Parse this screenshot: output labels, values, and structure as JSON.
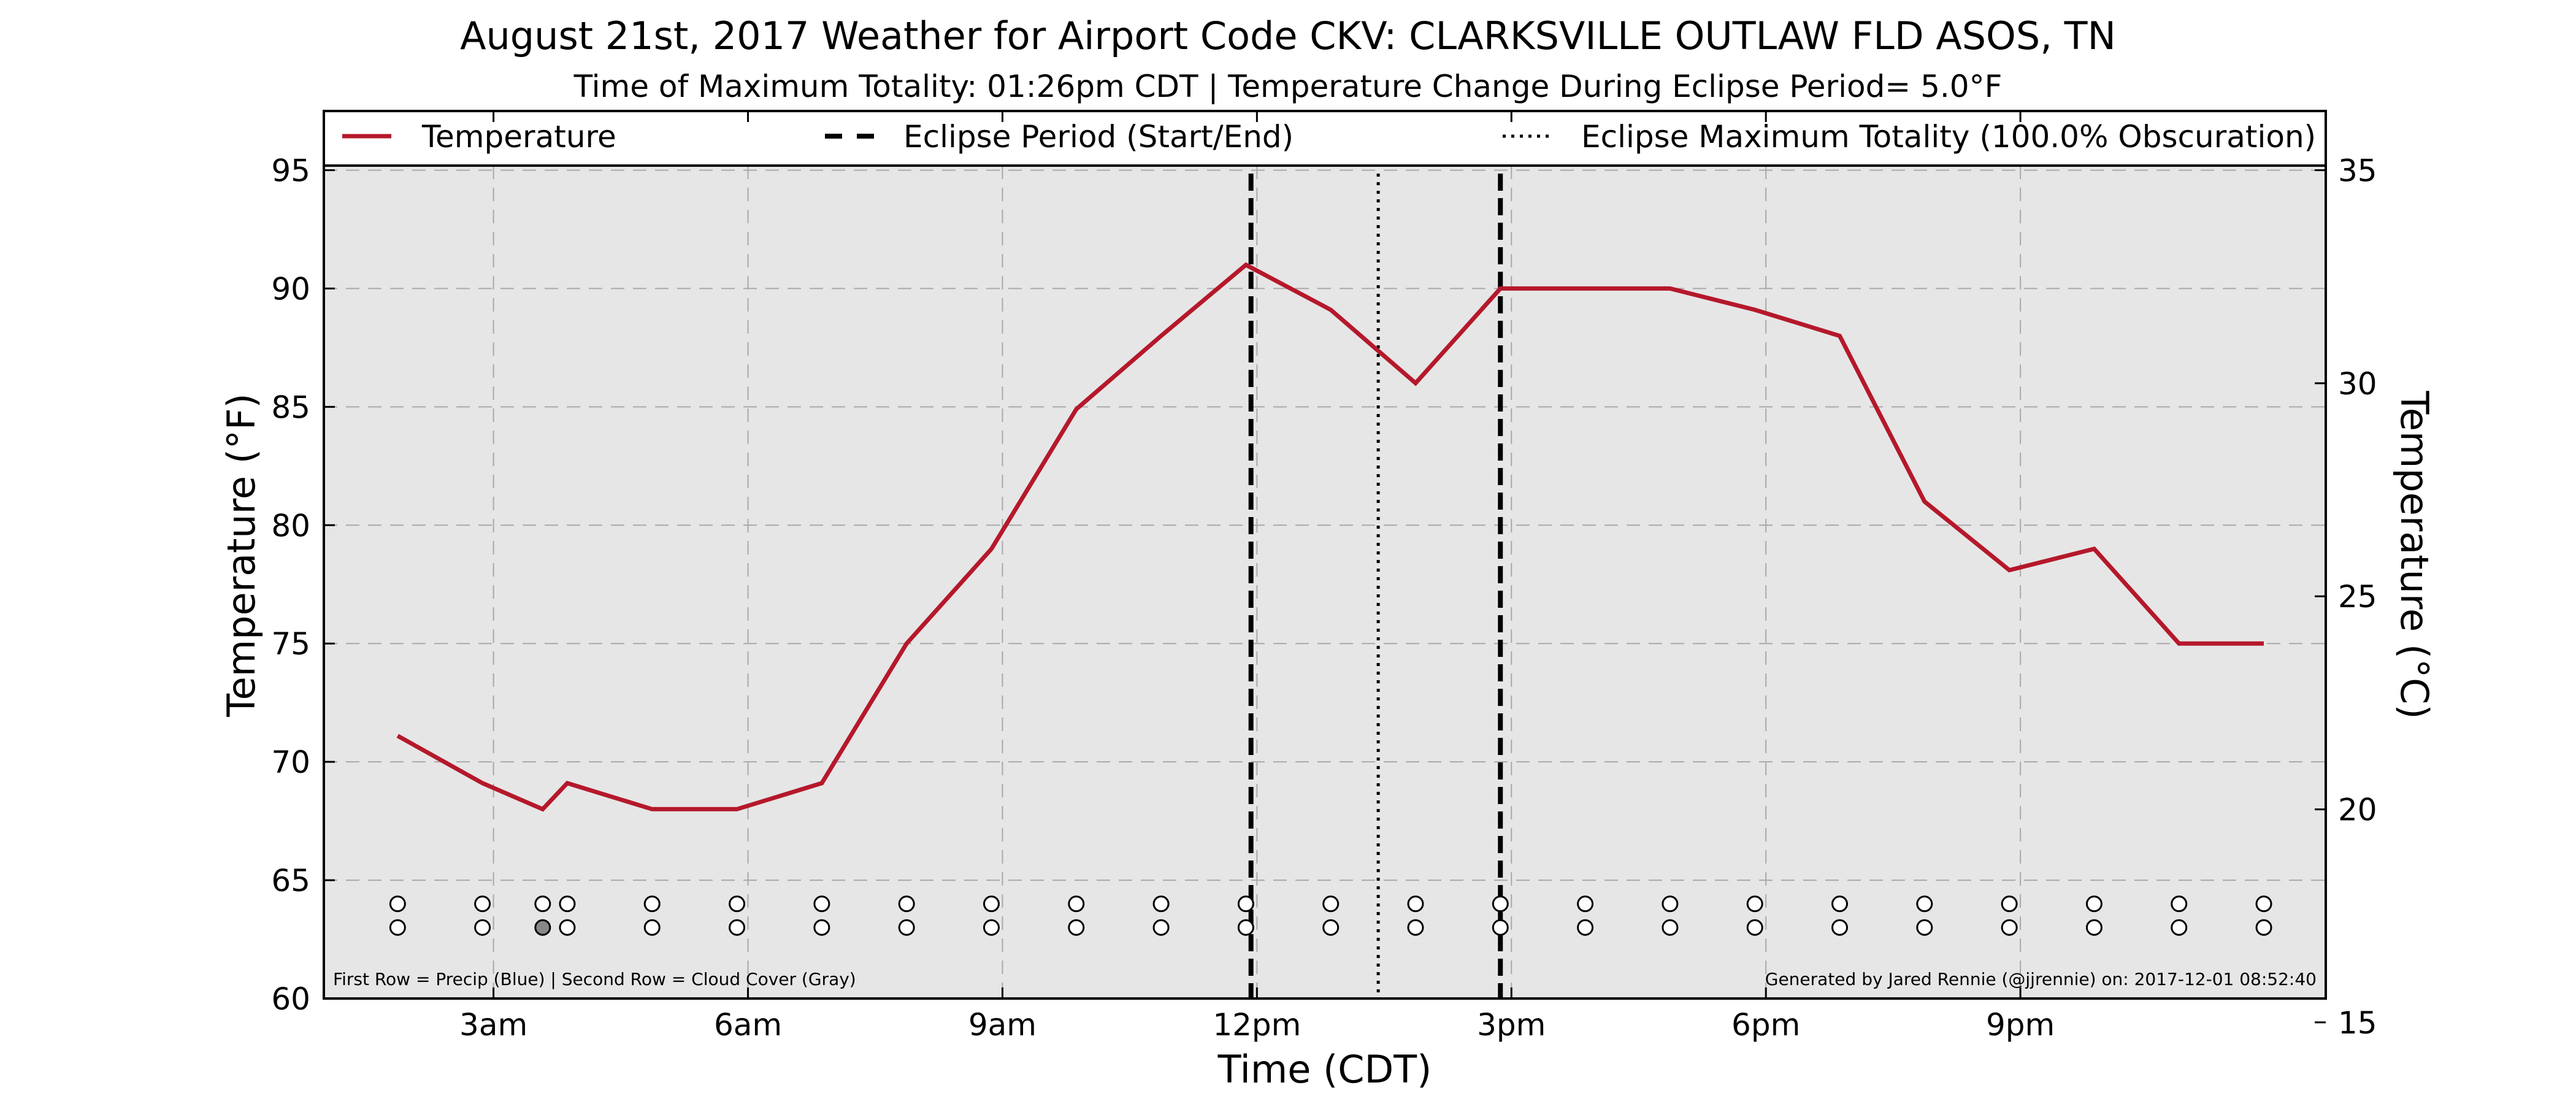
{
  "title": "August 21st, 2017 Weather for Airport Code CKV: CLARKSVILLE OUTLAW FLD ASOS, TN",
  "subtitle": "Time of Maximum Totality: 01:26pm CDT | Temperature Change During Eclipse Period= 5.0°F",
  "footer_left": "First Row = Precip (Blue) | Second Row = Cloud Cover (Gray)",
  "footer_right": "Generated by Jared Rennie (@jjrennie) on: 2017-12-01 08:52:40",
  "colors": {
    "temperature_line": "#b5182b",
    "plot_background": "#e6e6e6",
    "grid": "#a9a9a9",
    "cloud_cover_fill": "#888888"
  },
  "chart_data": {
    "type": "line",
    "xlabel": "Time (CDT)",
    "ylabel": "Temperature (°F)",
    "ylabel_right": "Temperature (°C)",
    "xlim": [
      1.0,
      24.6
    ],
    "ylim": [
      60,
      97.5
    ],
    "ylim_right": [
      15.56,
      36.39
    ],
    "x_ticks": [
      3,
      6,
      9,
      12,
      15,
      18,
      21
    ],
    "x_tick_labels": [
      "3am",
      "6am",
      "9am",
      "12pm",
      "3pm",
      "6pm",
      "9pm"
    ],
    "y_ticks": [
      60,
      65,
      70,
      75,
      80,
      85,
      90,
      95
    ],
    "y_tick_labels": [
      "60",
      "65",
      "70",
      "75",
      "80",
      "85",
      "90",
      "95"
    ],
    "y_ticks_right": [
      15,
      20,
      25,
      30,
      35
    ],
    "y_tick_labels_right": [
      "15",
      "20",
      "25",
      "30",
      "35"
    ],
    "grid": true,
    "legend_position": "top",
    "series": [
      {
        "name": "Temperature",
        "x": [
          1.87,
          2.87,
          3.58,
          3.87,
          4.87,
          5.87,
          6.87,
          7.87,
          8.87,
          9.87,
          10.87,
          11.87,
          12.87,
          13.87,
          14.87,
          15.87,
          16.87,
          17.87,
          18.87,
          19.87,
          20.87,
          21.87,
          22.87,
          23.87
        ],
        "y": [
          71.1,
          69.1,
          68.0,
          69.1,
          68.0,
          68.0,
          69.1,
          75.0,
          79.0,
          84.9,
          88.0,
          91.0,
          89.1,
          86.0,
          90.0,
          90.0,
          90.0,
          89.1,
          88.0,
          81.0,
          78.1,
          79.0,
          75.0,
          75.0
        ]
      }
    ],
    "eclipse_period": {
      "name": "Eclipse Period (Start/End)",
      "start": 11.93,
      "end": 14.87
    },
    "eclipse_max": {
      "name": "Eclipse Maximum Totality (100.0% Obscuration)",
      "x": 13.43
    },
    "precip_row": {
      "y": 64,
      "x": [
        1.87,
        2.87,
        3.58,
        3.87,
        4.87,
        5.87,
        6.87,
        7.87,
        8.87,
        9.87,
        10.87,
        11.87,
        12.87,
        13.87,
        14.87,
        15.87,
        16.87,
        17.87,
        18.87,
        19.87,
        20.87,
        21.87,
        22.87,
        23.87
      ]
    },
    "cloud_row": {
      "y": 63,
      "x": [
        1.87,
        2.87,
        3.58,
        3.87,
        4.87,
        5.87,
        6.87,
        7.87,
        8.87,
        9.87,
        10.87,
        11.87,
        12.87,
        13.87,
        14.87,
        15.87,
        16.87,
        17.87,
        18.87,
        19.87,
        20.87,
        21.87,
        22.87,
        23.87
      ],
      "filled": [
        false,
        false,
        true,
        false,
        false,
        false,
        false,
        false,
        false,
        false,
        false,
        false,
        false,
        false,
        false,
        false,
        false,
        false,
        false,
        false,
        false,
        false,
        false,
        false
      ]
    }
  }
}
